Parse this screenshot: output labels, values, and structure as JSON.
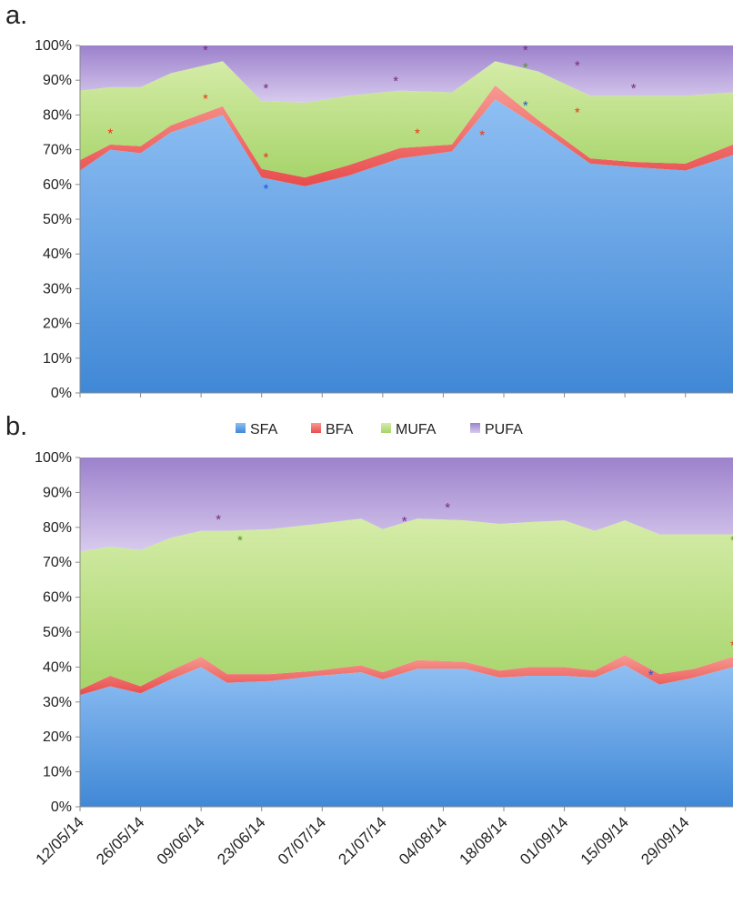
{
  "panel_labels": [
    "a.",
    "b."
  ],
  "legend": {
    "items": [
      {
        "label": "SFA",
        "color": "#5b9be0"
      },
      {
        "label": "BFA",
        "color": "#ef5b5b"
      },
      {
        "label": "MUFA",
        "color": "#b4da7c"
      },
      {
        "label": "PUFA",
        "color": "#a98ad3"
      }
    ]
  },
  "star_colors": {
    "blue": "#2255dd",
    "red": "#ee3311",
    "green": "#559922",
    "purple": "#7a2a80"
  },
  "chart_data": [
    {
      "type": "area",
      "stacking": "percent",
      "panel": "a.",
      "ylim": [
        0,
        100
      ],
      "yticks": [
        "0%",
        "10%",
        "20%",
        "30%",
        "40%",
        "50%",
        "60%",
        "70%",
        "80%",
        "90%",
        "100%"
      ],
      "xlim": [
        "2014-05-12",
        "2014-10-10"
      ],
      "xticks": [
        "12/05/14",
        "26/05/14",
        "09/06/14",
        "23/06/14",
        "07/07/14",
        "21/07/14",
        "04/08/14",
        "18/08/14",
        "01/09/14",
        "15/09/14",
        "29/09/14"
      ],
      "xtick_dates": [
        "2014-05-12",
        "2014-05-26",
        "2014-06-09",
        "2014-06-23",
        "2014-07-07",
        "2014-07-21",
        "2014-08-04",
        "2014-08-18",
        "2014-09-01",
        "2014-09-15",
        "2014-09-29"
      ],
      "grid": false,
      "x": [
        "2014-05-12",
        "2014-05-19",
        "2014-05-26",
        "2014-06-02",
        "2014-06-14",
        "2014-06-23",
        "2014-07-03",
        "2014-07-13",
        "2014-07-25",
        "2014-08-06",
        "2014-08-16",
        "2014-08-26",
        "2014-09-07",
        "2014-09-17",
        "2014-09-29",
        "2014-10-10"
      ],
      "series": [
        {
          "name": "SFA",
          "values": [
            64,
            70,
            69,
            75,
            80,
            62,
            59.5,
            62.5,
            67.5,
            69.5,
            84.5,
            76.5,
            66,
            65,
            64,
            68.5
          ]
        },
        {
          "name": "BFA",
          "values": [
            3,
            1.5,
            2,
            2,
            2.5,
            2.5,
            2.5,
            3,
            3,
            2,
            4,
            2,
            1.5,
            1.5,
            2,
            3
          ]
        },
        {
          "name": "MUFA",
          "values": [
            20,
            16.5,
            17,
            15,
            13,
            19.5,
            21.5,
            20,
            16.5,
            15,
            7,
            14,
            18,
            19,
            19.5,
            15
          ]
        },
        {
          "name": "PUFA",
          "values": [
            13,
            12,
            12,
            8,
            4.5,
            16,
            16.5,
            14.5,
            13,
            13.5,
            4.5,
            7.5,
            14.5,
            14.5,
            14.5,
            13.5
          ]
        }
      ],
      "markers": [
        {
          "x": "2014-05-19",
          "y": 75,
          "color": "red"
        },
        {
          "x": "2014-06-10",
          "y": 85,
          "color": "red"
        },
        {
          "x": "2014-06-10",
          "y": 99,
          "color": "purple"
        },
        {
          "x": "2014-06-24",
          "y": 59,
          "color": "blue"
        },
        {
          "x": "2014-06-24",
          "y": 68,
          "color": "red"
        },
        {
          "x": "2014-06-24",
          "y": 88,
          "color": "purple"
        },
        {
          "x": "2014-07-24",
          "y": 90,
          "color": "purple"
        },
        {
          "x": "2014-07-29",
          "y": 75,
          "color": "red"
        },
        {
          "x": "2014-08-13",
          "y": 74.5,
          "color": "red"
        },
        {
          "x": "2014-08-23",
          "y": 83,
          "color": "blue"
        },
        {
          "x": "2014-08-23",
          "y": 94,
          "color": "green"
        },
        {
          "x": "2014-08-23",
          "y": 99,
          "color": "purple"
        },
        {
          "x": "2014-09-04",
          "y": 81,
          "color": "red"
        },
        {
          "x": "2014-09-04",
          "y": 94.5,
          "color": "purple"
        },
        {
          "x": "2014-09-17",
          "y": 88,
          "color": "purple"
        }
      ]
    },
    {
      "type": "area",
      "stacking": "percent",
      "panel": "b.",
      "ylim": [
        0,
        100
      ],
      "yticks": [
        "0%",
        "10%",
        "20%",
        "30%",
        "40%",
        "50%",
        "60%",
        "70%",
        "80%",
        "90%",
        "100%"
      ],
      "xlim": [
        "2014-05-12",
        "2014-10-10"
      ],
      "xticks": [
        "12/05/14",
        "26/05/14",
        "09/06/14",
        "23/06/14",
        "07/07/14",
        "21/07/14",
        "04/08/14",
        "18/08/14",
        "01/09/14",
        "15/09/14",
        "29/09/14"
      ],
      "xtick_dates": [
        "2014-05-12",
        "2014-05-26",
        "2014-06-09",
        "2014-06-23",
        "2014-07-07",
        "2014-07-21",
        "2014-08-04",
        "2014-08-18",
        "2014-09-01",
        "2014-09-15",
        "2014-09-29"
      ],
      "grid": false,
      "x": [
        "2014-05-12",
        "2014-05-19",
        "2014-05-26",
        "2014-06-02",
        "2014-06-09",
        "2014-06-15",
        "2014-06-25",
        "2014-07-06",
        "2014-07-16",
        "2014-07-21",
        "2014-07-29",
        "2014-08-09",
        "2014-08-17",
        "2014-08-24",
        "2014-09-01",
        "2014-09-08",
        "2014-09-15",
        "2014-09-23",
        "2014-10-01",
        "2014-10-10"
      ],
      "series": [
        {
          "name": "SFA",
          "values": [
            32,
            34.5,
            32.5,
            36.5,
            40,
            35.5,
            36,
            37.5,
            38.5,
            36.5,
            39.5,
            39.5,
            37,
            37.5,
            37.5,
            37,
            40.5,
            35,
            37,
            40
          ]
        },
        {
          "name": "BFA",
          "values": [
            1.5,
            3,
            2,
            2.5,
            3,
            2.5,
            2,
            1.5,
            2,
            2,
            2.5,
            2,
            2,
            2.5,
            2.5,
            2,
            3,
            3,
            2.5,
            3
          ]
        },
        {
          "name": "MUFA",
          "values": [
            39.5,
            37,
            39,
            38,
            36,
            41,
            41.5,
            42,
            42,
            41,
            40.5,
            40.5,
            42,
            41.5,
            42,
            40,
            38.5,
            40,
            38.5,
            35
          ]
        },
        {
          "name": "PUFA",
          "values": [
            27,
            25.5,
            26.5,
            23,
            21,
            21,
            20.5,
            19,
            17.5,
            20.5,
            17.5,
            18,
            19,
            18.5,
            18,
            21,
            18,
            22,
            22,
            22
          ]
        }
      ],
      "markers": [
        {
          "x": "2014-06-13",
          "y": 82.5,
          "color": "purple"
        },
        {
          "x": "2014-06-18",
          "y": 76.5,
          "color": "green"
        },
        {
          "x": "2014-07-26",
          "y": 82,
          "color": "purple"
        },
        {
          "x": "2014-08-05",
          "y": 86,
          "color": "purple"
        },
        {
          "x": "2014-09-21",
          "y": 38,
          "color": "blue"
        },
        {
          "x": "2014-10-10",
          "y": 76.5,
          "color": "green"
        },
        {
          "x": "2014-10-10",
          "y": 46.5,
          "color": "red"
        }
      ]
    }
  ]
}
